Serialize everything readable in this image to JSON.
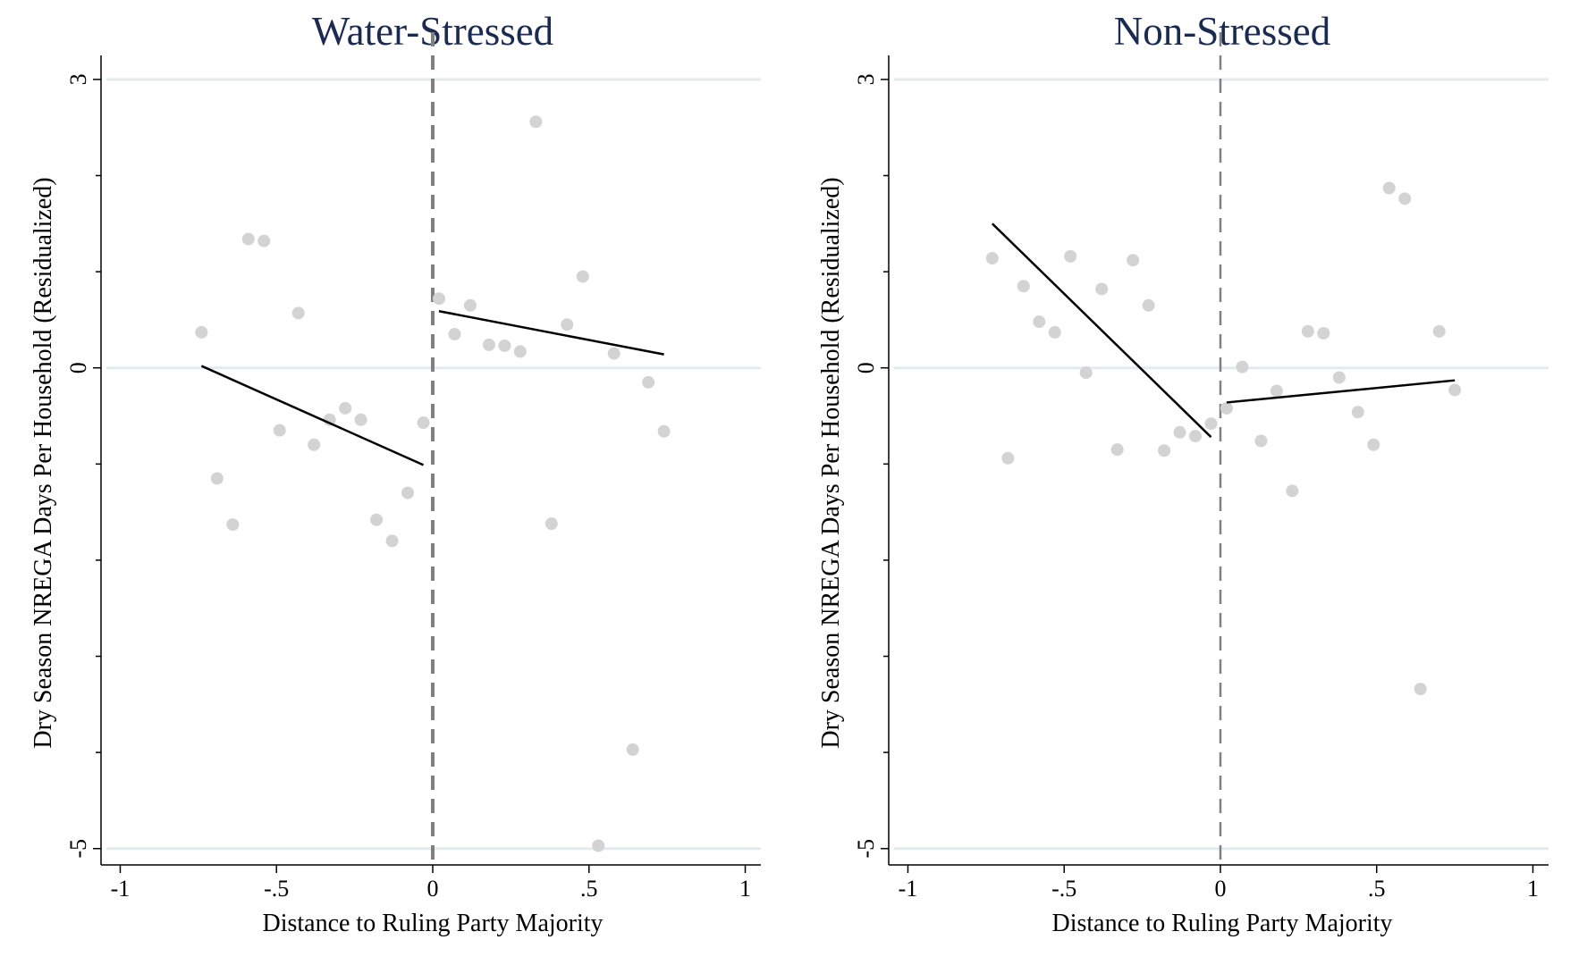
{
  "chart_data": [
    {
      "type": "scatter",
      "title": "Water-Stressed",
      "xlabel": "Distance to Ruling Party Majority",
      "ylabel": "Dry Season NREGA Days Per Household (Residualized)",
      "xlim": [
        -1.05,
        1.05
      ],
      "ylim": [
        -5.17,
        3.25
      ],
      "x_ticks": [
        -1,
        -0.5,
        0,
        0.5,
        1
      ],
      "x_tick_labels": [
        "-1",
        "-.5",
        "0",
        ".5",
        "1"
      ],
      "y_ticks": [
        3,
        0,
        -5
      ],
      "y_tick_labels": [
        "3",
        "0",
        "-5"
      ],
      "y_minor_ticks": [
        2,
        1,
        -1,
        -2,
        -3,
        -4
      ],
      "grid_y": [
        3,
        0,
        -5
      ],
      "cutoff_x": 0,
      "points": [
        {
          "x": -0.74,
          "y": 0.37
        },
        {
          "x": -0.69,
          "y": -1.15
        },
        {
          "x": -0.64,
          "y": -1.63
        },
        {
          "x": -0.59,
          "y": 1.34
        },
        {
          "x": -0.54,
          "y": 1.32
        },
        {
          "x": -0.49,
          "y": -0.65
        },
        {
          "x": -0.43,
          "y": 0.57
        },
        {
          "x": -0.38,
          "y": -0.8
        },
        {
          "x": -0.33,
          "y": -0.54
        },
        {
          "x": -0.28,
          "y": -0.42
        },
        {
          "x": -0.23,
          "y": -0.54
        },
        {
          "x": -0.18,
          "y": -1.58
        },
        {
          "x": -0.13,
          "y": -1.8
        },
        {
          "x": -0.08,
          "y": -1.3
        },
        {
          "x": -0.03,
          "y": -0.57
        },
        {
          "x": 0.02,
          "y": 0.72
        },
        {
          "x": 0.07,
          "y": 0.35
        },
        {
          "x": 0.12,
          "y": 0.65
        },
        {
          "x": 0.18,
          "y": 0.24
        },
        {
          "x": 0.23,
          "y": 0.23
        },
        {
          "x": 0.28,
          "y": 0.17
        },
        {
          "x": 0.33,
          "y": 2.56
        },
        {
          "x": 0.38,
          "y": -1.62
        },
        {
          "x": 0.43,
          "y": 0.45
        },
        {
          "x": 0.48,
          "y": 0.95
        },
        {
          "x": 0.53,
          "y": -4.97
        },
        {
          "x": 0.58,
          "y": 0.15
        },
        {
          "x": 0.64,
          "y": -3.97
        },
        {
          "x": 0.69,
          "y": -0.15
        },
        {
          "x": 0.74,
          "y": -0.66
        }
      ],
      "fit_lines": [
        {
          "x": [
            -0.74,
            -0.03
          ],
          "y": [
            0.02,
            -1.01
          ]
        },
        {
          "x": [
            0.02,
            0.74
          ],
          "y": [
            0.59,
            0.14
          ]
        }
      ]
    },
    {
      "type": "scatter",
      "title": "Non-Stressed",
      "xlabel": "Distance to Ruling Party Majority",
      "ylabel": "Dry Season NREGA Days Per Household (Residualized)",
      "xlim": [
        -1.05,
        1.05
      ],
      "ylim": [
        -5.17,
        3.25
      ],
      "x_ticks": [
        -1,
        -0.5,
        0,
        0.5,
        1
      ],
      "x_tick_labels": [
        "-1",
        "-.5",
        "0",
        ".5",
        "1"
      ],
      "y_ticks": [
        3,
        0,
        -5
      ],
      "y_tick_labels": [
        "3",
        "0",
        "-5"
      ],
      "y_minor_ticks": [
        2,
        1,
        -1,
        -2,
        -3,
        -4
      ],
      "grid_y": [
        3,
        0,
        -5
      ],
      "cutoff_x": 0,
      "points": [
        {
          "x": -0.73,
          "y": 1.14
        },
        {
          "x": -0.68,
          "y": -0.94
        },
        {
          "x": -0.63,
          "y": 0.85
        },
        {
          "x": -0.58,
          "y": 0.48
        },
        {
          "x": -0.53,
          "y": 0.37
        },
        {
          "x": -0.48,
          "y": 1.16
        },
        {
          "x": -0.43,
          "y": -0.05
        },
        {
          "x": -0.38,
          "y": 0.82
        },
        {
          "x": -0.33,
          "y": -0.85
        },
        {
          "x": -0.28,
          "y": 1.12
        },
        {
          "x": -0.23,
          "y": 0.65
        },
        {
          "x": -0.18,
          "y": -0.86
        },
        {
          "x": -0.13,
          "y": -0.67
        },
        {
          "x": -0.08,
          "y": -0.71
        },
        {
          "x": -0.03,
          "y": -0.58
        },
        {
          "x": 0.02,
          "y": -0.42
        },
        {
          "x": 0.07,
          "y": 0.01
        },
        {
          "x": 0.13,
          "y": -0.76
        },
        {
          "x": 0.18,
          "y": -0.24
        },
        {
          "x": 0.23,
          "y": -1.28
        },
        {
          "x": 0.28,
          "y": 0.38
        },
        {
          "x": 0.33,
          "y": 0.36
        },
        {
          "x": 0.38,
          "y": -0.1
        },
        {
          "x": 0.44,
          "y": -0.46
        },
        {
          "x": 0.49,
          "y": -0.8
        },
        {
          "x": 0.54,
          "y": 1.87
        },
        {
          "x": 0.59,
          "y": 1.76
        },
        {
          "x": 0.64,
          "y": -3.34
        },
        {
          "x": 0.7,
          "y": 0.38
        },
        {
          "x": 0.75,
          "y": -0.23
        }
      ],
      "fit_lines": [
        {
          "x": [
            -0.73,
            -0.03
          ],
          "y": [
            1.5,
            -0.72
          ]
        },
        {
          "x": [
            0.02,
            0.75
          ],
          "y": [
            -0.36,
            -0.13
          ]
        }
      ]
    }
  ],
  "colors": {
    "points": "#d3d3d3",
    "fit_line": "#000000",
    "cutoff_line": "#808080",
    "grid": "#e3eced",
    "title": "#1a2a50",
    "axis": "#000000"
  }
}
